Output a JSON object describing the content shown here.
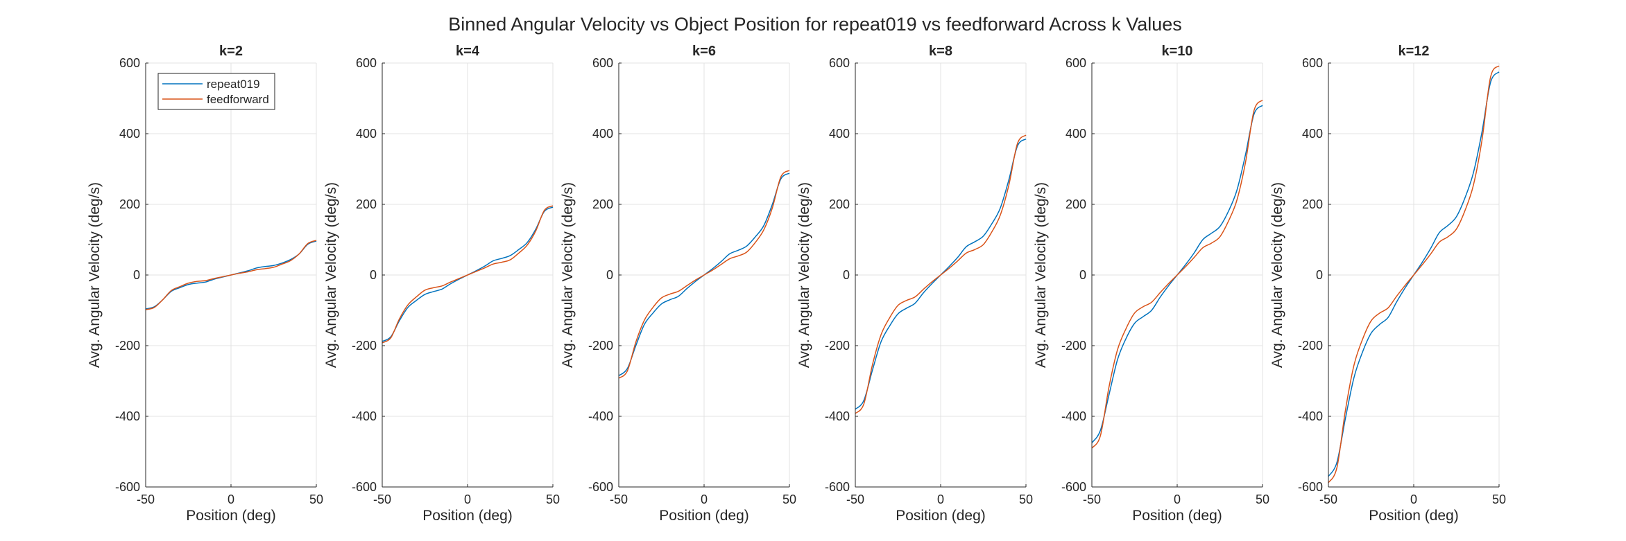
{
  "figure": {
    "title": "Binned Angular Velocity vs Object Position for repeat019 vs feedforward Across k Values"
  },
  "legend": {
    "items": [
      {
        "label": "repeat019",
        "color": "#0072BD"
      },
      {
        "label": "feedforward",
        "color": "#D95319"
      }
    ],
    "placement": "top-left, inside first panel"
  },
  "chart_data": [
    {
      "type": "line",
      "title": "k=2",
      "xlabel": "Position (deg)",
      "ylabel": "Avg. Angular Velocity (deg/s)",
      "xlim": [
        -50,
        50
      ],
      "ylim": [
        -600,
        600
      ],
      "xticks": [
        -50,
        0,
        50
      ],
      "yticks": [
        -600,
        -400,
        -200,
        0,
        200,
        400,
        600
      ],
      "grid": true,
      "x": [
        -50,
        -45,
        -40,
        -35,
        -30,
        -25,
        -20,
        -15,
        -10,
        -5,
        0,
        5,
        10,
        15,
        20,
        25,
        30,
        35,
        40,
        45,
        50
      ],
      "series": [
        {
          "name": "repeat019",
          "values": [
            -96,
            -90,
            -70,
            -46,
            -36,
            -27,
            -23,
            -20,
            -12,
            -6,
            0,
            6,
            12,
            20,
            24,
            27,
            34,
            44,
            60,
            87,
            96
          ]
        },
        {
          "name": "feedforward",
          "values": [
            -98,
            -92,
            -70,
            -44,
            -33,
            -23,
            -18,
            -16,
            -10,
            -5,
            0,
            5,
            9,
            15,
            18,
            22,
            31,
            41,
            60,
            89,
            98
          ]
        }
      ]
    },
    {
      "type": "line",
      "title": "k=4",
      "xlabel": "Position (deg)",
      "ylabel": "Avg. Angular Velocity (deg/s)",
      "xlim": [
        -50,
        50
      ],
      "ylim": [
        -600,
        600
      ],
      "xticks": [
        -50,
        0,
        50
      ],
      "yticks": [
        -600,
        -400,
        -200,
        0,
        200,
        400,
        600
      ],
      "grid": true,
      "x": [
        -50,
        -45,
        -40,
        -35,
        -30,
        -25,
        -20,
        -15,
        -10,
        -5,
        0,
        5,
        10,
        15,
        20,
        25,
        30,
        35,
        40,
        45,
        50
      ],
      "series": [
        {
          "name": "repeat019",
          "values": [
            -188,
            -175,
            -130,
            -92,
            -72,
            -55,
            -47,
            -40,
            -25,
            -12,
            0,
            12,
            25,
            40,
            47,
            55,
            72,
            92,
            130,
            180,
            192
          ]
        },
        {
          "name": "feedforward",
          "values": [
            -192,
            -178,
            -125,
            -85,
            -62,
            -43,
            -36,
            -31,
            -20,
            -10,
            0,
            10,
            20,
            31,
            36,
            43,
            62,
            85,
            125,
            183,
            196
          ]
        }
      ]
    },
    {
      "type": "line",
      "title": "k=6",
      "xlabel": "Position (deg)",
      "ylabel": "Avg. Angular Velocity (deg/s)",
      "xlim": [
        -50,
        50
      ],
      "ylim": [
        -600,
        600
      ],
      "xticks": [
        -50,
        0,
        50
      ],
      "yticks": [
        -600,
        -400,
        -200,
        0,
        200,
        400,
        600
      ],
      "grid": true,
      "x": [
        -50,
        -45,
        -40,
        -35,
        -30,
        -25,
        -20,
        -15,
        -10,
        -5,
        0,
        5,
        10,
        15,
        20,
        25,
        30,
        35,
        40,
        45,
        50
      ],
      "series": [
        {
          "name": "repeat019",
          "values": [
            -285,
            -265,
            -200,
            -140,
            -108,
            -82,
            -70,
            -60,
            -38,
            -18,
            0,
            18,
            38,
            60,
            70,
            82,
            108,
            140,
            200,
            272,
            288
          ]
        },
        {
          "name": "feedforward",
          "values": [
            -292,
            -272,
            -190,
            -128,
            -92,
            -65,
            -54,
            -46,
            -30,
            -14,
            0,
            14,
            30,
            46,
            54,
            65,
            92,
            128,
            190,
            278,
            296
          ]
        }
      ]
    },
    {
      "type": "line",
      "title": "k=8",
      "xlabel": "Position (deg)",
      "ylabel": "Avg. Angular Velocity (deg/s)",
      "xlim": [
        -50,
        50
      ],
      "ylim": [
        -600,
        600
      ],
      "xticks": [
        -50,
        0,
        50
      ],
      "yticks": [
        -600,
        -400,
        -200,
        0,
        200,
        400,
        600
      ],
      "grid": true,
      "x": [
        -50,
        -45,
        -40,
        -35,
        -30,
        -25,
        -20,
        -15,
        -10,
        -5,
        0,
        5,
        10,
        15,
        20,
        25,
        30,
        35,
        40,
        45,
        50
      ],
      "series": [
        {
          "name": "repeat019",
          "values": [
            -380,
            -355,
            -270,
            -190,
            -145,
            -110,
            -94,
            -80,
            -50,
            -24,
            0,
            24,
            50,
            80,
            94,
            110,
            145,
            190,
            270,
            365,
            385
          ]
        },
        {
          "name": "feedforward",
          "values": [
            -392,
            -365,
            -255,
            -170,
            -122,
            -86,
            -72,
            -62,
            -40,
            -19,
            0,
            19,
            40,
            62,
            72,
            86,
            122,
            170,
            255,
            372,
            396
          ]
        }
      ]
    },
    {
      "type": "line",
      "title": "k=10",
      "xlabel": "Position (deg)",
      "ylabel": "Avg. Angular Velocity (deg/s)",
      "xlim": [
        -50,
        50
      ],
      "ylim": [
        -600,
        600
      ],
      "xticks": [
        -50,
        0,
        50
      ],
      "yticks": [
        -600,
        -400,
        -200,
        0,
        200,
        400,
        600
      ],
      "grid": true,
      "x": [
        -50,
        -45,
        -40,
        -35,
        -30,
        -25,
        -20,
        -15,
        -10,
        -5,
        0,
        5,
        10,
        15,
        20,
        25,
        30,
        35,
        40,
        45,
        50
      ],
      "series": [
        {
          "name": "repeat019",
          "values": [
            -475,
            -440,
            -340,
            -240,
            -180,
            -137,
            -118,
            -100,
            -63,
            -30,
            0,
            30,
            63,
            100,
            118,
            137,
            180,
            240,
            340,
            455,
            480
          ]
        },
        {
          "name": "feedforward",
          "values": [
            -490,
            -455,
            -318,
            -212,
            -152,
            -108,
            -90,
            -77,
            -50,
            -24,
            0,
            24,
            50,
            77,
            90,
            108,
            152,
            212,
            318,
            465,
            495
          ]
        }
      ]
    },
    {
      "type": "line",
      "title": "k=12",
      "xlabel": "Position (deg)",
      "ylabel": "Avg. Angular Velocity (deg/s)",
      "xlim": [
        -50,
        50
      ],
      "ylim": [
        -600,
        600
      ],
      "xticks": [
        -50,
        0,
        50
      ],
      "yticks": [
        -600,
        -400,
        -200,
        0,
        200,
        400,
        600
      ],
      "grid": true,
      "x": [
        -50,
        -45,
        -40,
        -35,
        -30,
        -25,
        -20,
        -15,
        -10,
        -5,
        0,
        5,
        10,
        15,
        20,
        25,
        30,
        35,
        40,
        45,
        50
      ],
      "series": [
        {
          "name": "repeat019",
          "values": [
            -570,
            -530,
            -405,
            -290,
            -218,
            -165,
            -140,
            -120,
            -76,
            -36,
            0,
            36,
            76,
            120,
            140,
            165,
            218,
            290,
            405,
            545,
            575
          ]
        },
        {
          "name": "feedforward",
          "values": [
            -588,
            -545,
            -382,
            -255,
            -182,
            -130,
            -108,
            -93,
            -60,
            -29,
            0,
            29,
            60,
            93,
            108,
            130,
            182,
            255,
            382,
            560,
            592
          ]
        }
      ]
    }
  ]
}
